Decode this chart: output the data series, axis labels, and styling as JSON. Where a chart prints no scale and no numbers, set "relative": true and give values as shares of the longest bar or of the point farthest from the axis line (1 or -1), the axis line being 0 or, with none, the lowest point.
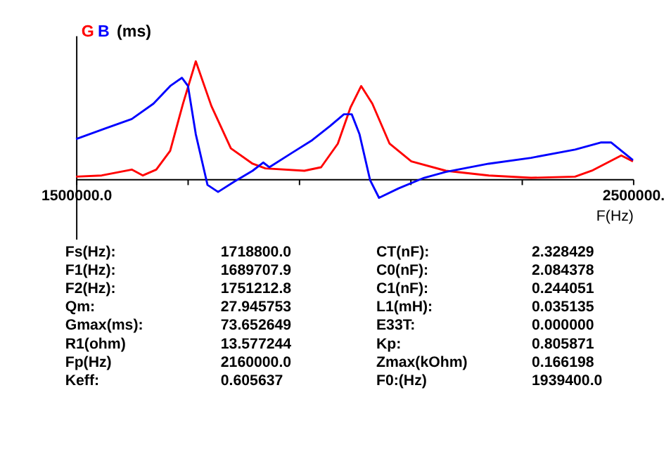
{
  "chart_data": {
    "type": "line",
    "relative": true,
    "ylabel": "(ms)",
    "xlabel": "F(Hz)",
    "grid": false,
    "xlim": [
      1500000,
      2500000
    ],
    "xticks": [
      {
        "value": 1500000,
        "label": "1500000.0"
      },
      {
        "value": 1700000,
        "label": null
      },
      {
        "value": 1900000,
        "label": null
      },
      {
        "value": 2100000,
        "label": null
      },
      {
        "value": 2300000,
        "label": null
      },
      {
        "value": 2500000,
        "label": "2500000."
      }
    ],
    "series": [
      {
        "name": "G",
        "color": "#ff0000",
        "x": [
          1500000,
          1546000,
          1600000,
          1620000,
          1644000,
          1669000,
          1692000,
          1715000,
          1743000,
          1778000,
          1817000,
          1840000,
          1910000,
          1940000,
          1970000,
          1993000,
          2012000,
          2032000,
          2063000,
          2102000,
          2164000,
          2241000,
          2317000,
          2396000,
          2426000,
          2479000,
          2500000
        ],
        "values": [
          0.02,
          0.03,
          0.08,
          0.03,
          0.08,
          0.24,
          0.64,
          1.0,
          0.62,
          0.26,
          0.13,
          0.09,
          0.07,
          0.1,
          0.3,
          0.61,
          0.79,
          0.64,
          0.3,
          0.15,
          0.07,
          0.03,
          0.01,
          0.02,
          0.07,
          0.2,
          0.15
        ]
      },
      {
        "name": "B",
        "color": "#0000ff",
        "x": [
          1500000,
          1553000,
          1600000,
          1639000,
          1669000,
          1690000,
          1701000,
          1715000,
          1736000,
          1755000,
          1785000,
          1817000,
          1836000,
          1847000,
          1887000,
          1924000,
          1956000,
          1981000,
          1995000,
          2009000,
          2028000,
          2044000,
          2079000,
          2125000,
          2164000,
          2241000,
          2317000,
          2396000,
          2442000,
          2461000,
          2500000
        ],
        "values": [
          0.34,
          0.43,
          0.51,
          0.64,
          0.79,
          0.86,
          0.79,
          0.38,
          -0.05,
          -0.11,
          -0.02,
          0.07,
          0.14,
          0.1,
          0.22,
          0.33,
          0.45,
          0.55,
          0.55,
          0.38,
          -0.01,
          -0.16,
          -0.08,
          0.01,
          0.06,
          0.13,
          0.18,
          0.25,
          0.31,
          0.31,
          0.16
        ]
      }
    ],
    "annotations": [
      "Fs(Hz):",
      "1718800.0",
      "CT(nF):",
      "2.328429",
      "F1(Hz):",
      "1689707.9",
      "C0(nF):",
      "2.084378",
      "F2(Hz):",
      "1751212.8",
      "C1(nF):",
      "0.244051",
      "Qm:",
      "27.945753",
      "L1(mH):",
      "0.035135",
      "Gmax(ms):",
      "73.652649",
      "E33T:",
      "0.000000",
      "R1(ohm)",
      "13.577244",
      "Kp:",
      "0.805871",
      "Fp(Hz)",
      "2160000.0",
      "Zmax(kOhm)",
      "0.166198",
      "Keff:",
      "0.605637",
      "F0:(Hz)",
      "1939400.0"
    ]
  }
}
